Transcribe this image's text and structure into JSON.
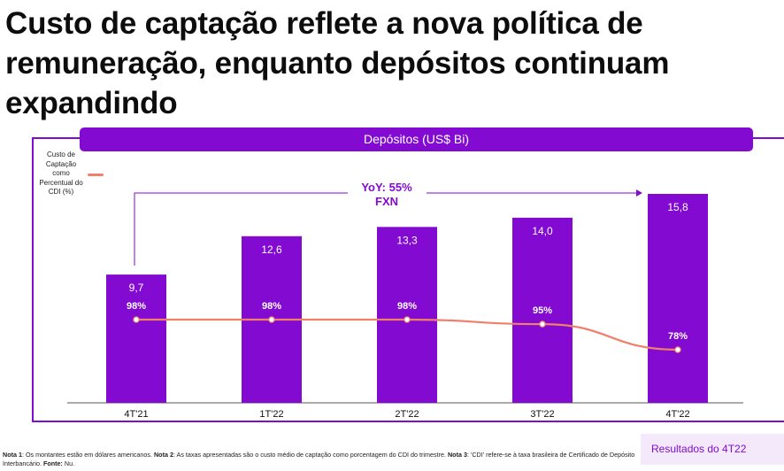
{
  "slide": {
    "title": "Custo de captação reflete a nova política de remuneração, enquanto depósitos continuam expandindo",
    "footer_badge": "Resultados do 4T22"
  },
  "footnote": {
    "n1_label": "Nota 1",
    "n1_text": ": Os montantes estão em dólares americanos. ",
    "n2_label": "Nota 2",
    "n2_text": ": As taxas apresentadas são o custo médio de captação como porcentagem do CDI do trimestre. ",
    "n3_label": "Nota 3",
    "n3_text": ": 'CDI' refere-se à taxa brasileira de Certificado de Depósito Interbancário. ",
    "src_label": "Fonte:",
    "src_text": " Nu."
  },
  "chart_data": {
    "type": "bar",
    "title": "Depósitos (US$ Bi)",
    "categories": [
      "4T'21",
      "1T'22",
      "2T'22",
      "3T'22",
      "4T'22"
    ],
    "series": [
      {
        "type": "bar",
        "values": [
          9.7,
          12.6,
          13.3,
          14.0,
          15.8
        ],
        "labels": [
          "9,7",
          "12,6",
          "13,3",
          "14,0",
          "15,8"
        ],
        "color": "#820ad1"
      },
      {
        "name": "Custo de Captação como Percentual do CDI (%)",
        "type": "line",
        "values": [
          98,
          98,
          98,
          95,
          78
        ],
        "labels": [
          "98%",
          "98%",
          "98%",
          "95%",
          "78%"
        ],
        "color": "#f07f6b"
      }
    ],
    "annotation": {
      "line1": "YoY: 55%",
      "line2": "FXN"
    },
    "legend_position": "top-left",
    "grid": false
  }
}
